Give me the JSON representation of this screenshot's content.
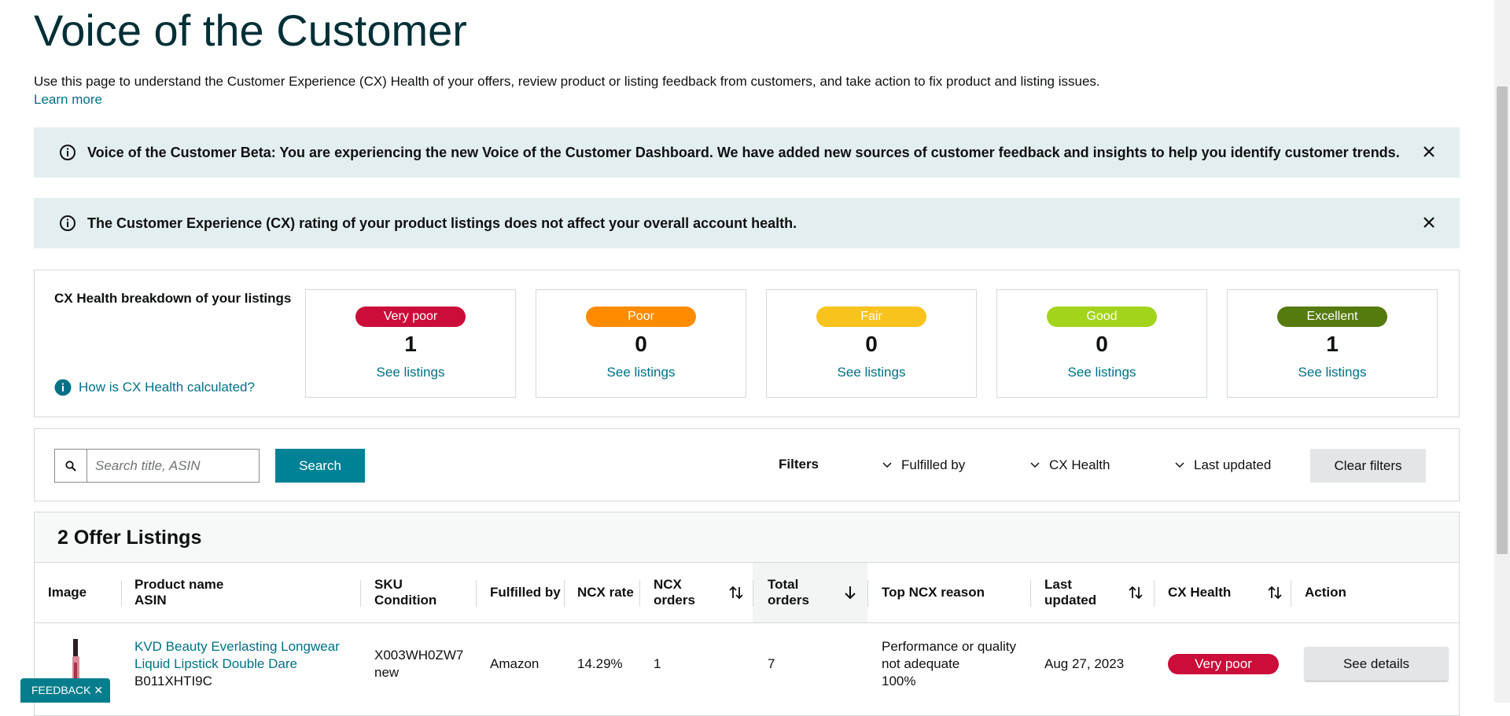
{
  "header": {
    "title": "Voice of the Customer",
    "description": "Use this page to understand the Customer Experience (CX) Health of your offers, review product or listing feedback from customers, and take action to fix product and listing issues.",
    "learn_more": "Learn more"
  },
  "banners": [
    "Voice of the Customer Beta: You are experiencing the new Voice of the Customer Dashboard. We have added new sources of customer feedback and insights to help you identify customer trends.",
    "The Customer Experience (CX) rating of your product listings does not affect your overall account health."
  ],
  "cx_breakdown": {
    "title": "CX Health breakdown of your listings",
    "help_link": "How is CX Health calculated?",
    "cards": [
      {
        "label": "Very poor",
        "count": 1,
        "link": "See listings",
        "color": "#cc0c39"
      },
      {
        "label": "Poor",
        "count": 0,
        "link": "See listings",
        "color": "#ff8c00"
      },
      {
        "label": "Fair",
        "count": 0,
        "link": "See listings",
        "color": "#f7c31c"
      },
      {
        "label": "Good",
        "count": 0,
        "link": "See listings",
        "color": "#a3d41c"
      },
      {
        "label": "Excellent",
        "count": 1,
        "link": "See listings",
        "color": "#557a0e"
      }
    ]
  },
  "search": {
    "placeholder": "Search title, ASIN",
    "button": "Search"
  },
  "filters": {
    "label": "Filters",
    "items": [
      "Fulfilled by",
      "CX Health",
      "Last updated"
    ],
    "clear": "Clear filters"
  },
  "listings": {
    "title": "2 Offer Listings",
    "columns": [
      [
        "Image"
      ],
      [
        "Product name",
        "ASIN"
      ],
      [
        "SKU",
        "Condition"
      ],
      [
        "Fulfilled by"
      ],
      [
        "NCX rate"
      ],
      [
        "NCX",
        "orders"
      ],
      [
        "Total",
        "orders"
      ],
      [
        "Top NCX reason"
      ],
      [
        "Last",
        "updated"
      ],
      [
        "CX Health"
      ],
      [
        "Action"
      ]
    ],
    "rows": [
      {
        "product_name": "KVD Beauty Everlasting Longwear Liquid Lipstick Double Dare",
        "asin": "B011XHTI9C",
        "sku": "X003WH0ZW7",
        "condition": "new",
        "fulfilled_by": "Amazon",
        "ncx_rate": "14.29%",
        "ncx_orders": 1,
        "total_orders": 7,
        "top_ncx_reason": "Performance or quality not adequate",
        "top_ncx_share": "100%",
        "last_updated": "Aug 27, 2023",
        "cx_health": "Very poor",
        "action": "See details"
      }
    ]
  },
  "feedback": "FEEDBACK"
}
